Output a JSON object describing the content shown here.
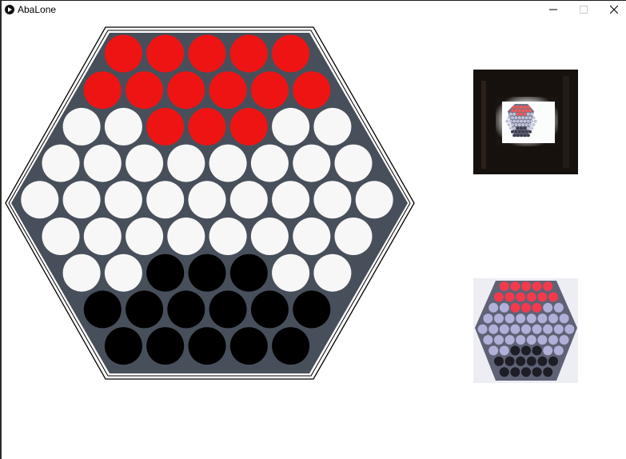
{
  "window": {
    "title": "AbaLone"
  },
  "colors": {
    "board": "#474f5a",
    "red": "#ee1414",
    "white": "#f7f7f7",
    "black": "#000000",
    "frame": "#000000"
  },
  "board": {
    "rows": [
      [
        "R",
        "R",
        "R",
        "R",
        "R"
      ],
      [
        "R",
        "R",
        "R",
        "R",
        "R",
        "R"
      ],
      [
        "W",
        "W",
        "R",
        "R",
        "R",
        "W",
        "W"
      ],
      [
        "W",
        "W",
        "W",
        "W",
        "W",
        "W",
        "W",
        "W"
      ],
      [
        "W",
        "W",
        "W",
        "W",
        "W",
        "W",
        "W",
        "W",
        "W"
      ],
      [
        "W",
        "W",
        "W",
        "W",
        "W",
        "W",
        "W",
        "W"
      ],
      [
        "W",
        "W",
        "B",
        "B",
        "B",
        "W",
        "W"
      ],
      [
        "B",
        "B",
        "B",
        "B",
        "B",
        "B"
      ],
      [
        "B",
        "B",
        "B",
        "B",
        "B"
      ]
    ]
  },
  "icons": {
    "app": "record-icon",
    "minimize": "minimize-icon",
    "maximize": "maximize-icon",
    "close": "close-icon"
  }
}
